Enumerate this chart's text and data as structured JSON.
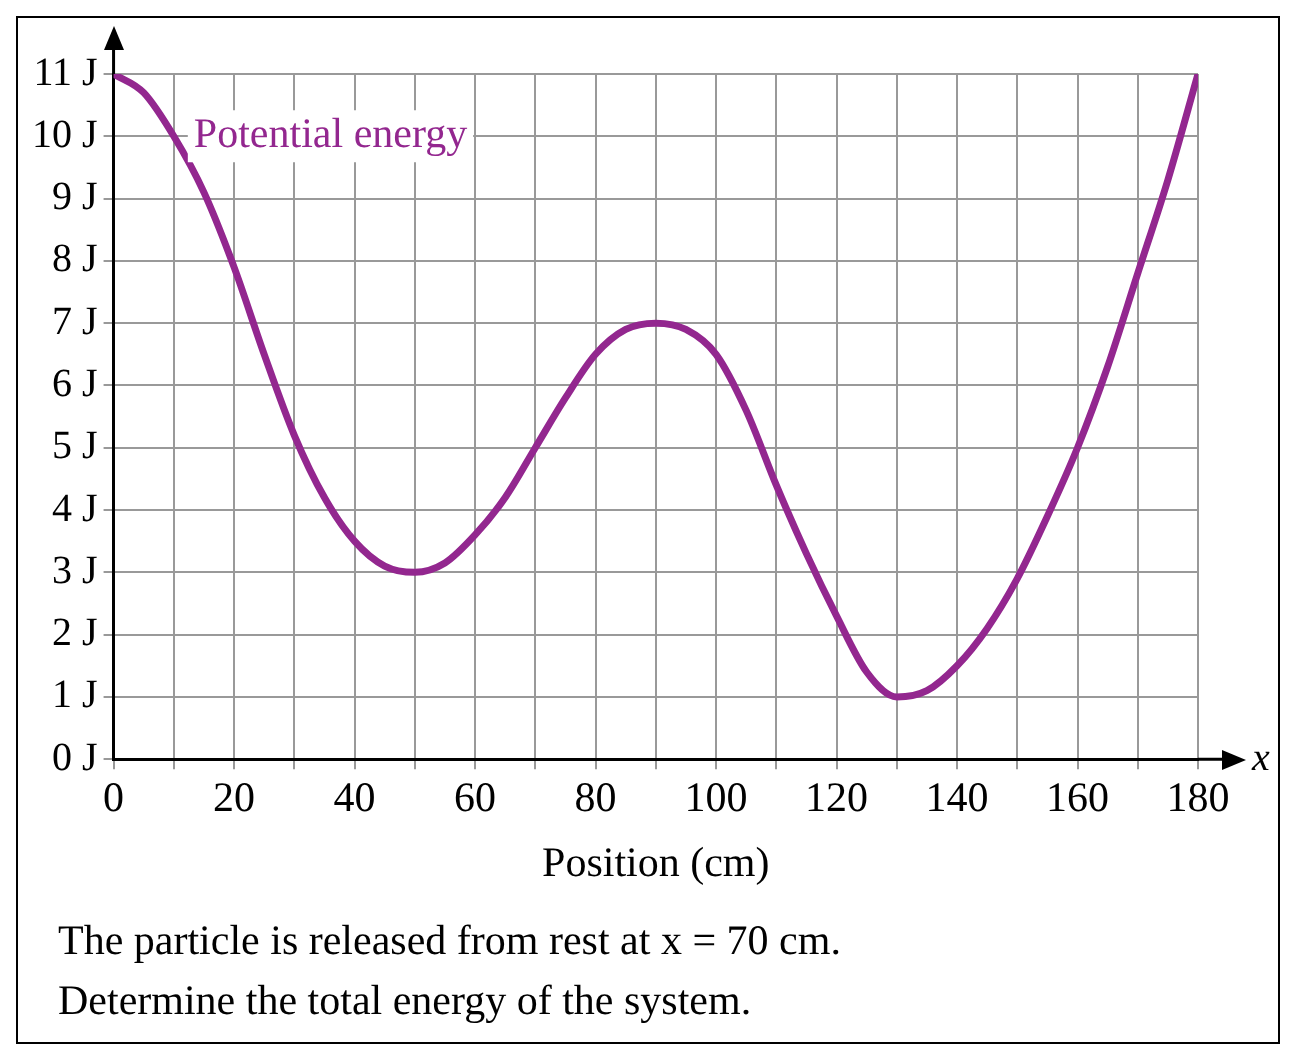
{
  "chart_data": {
    "type": "line",
    "xlabel": "Position (cm)",
    "x": [
      0,
      5,
      10,
      15,
      20,
      25,
      30,
      35,
      40,
      45,
      50,
      55,
      60,
      65,
      70,
      75,
      80,
      85,
      90,
      95,
      100,
      105,
      110,
      115,
      120,
      125,
      130,
      135,
      140,
      145,
      150,
      155,
      160,
      165,
      170,
      175,
      180
    ],
    "series": [
      {
        "name": "Potential energy",
        "color": "#93278f",
        "values": [
          11,
          10.7,
          10,
          9.1,
          7.9,
          6.5,
          5.2,
          4.2,
          3.5,
          3.1,
          3,
          3.15,
          3.6,
          4.2,
          5,
          5.8,
          6.5,
          6.9,
          7,
          6.9,
          6.5,
          5.6,
          4.4,
          3.3,
          2.3,
          1.4,
          1,
          1.1,
          1.5,
          2.1,
          2.9,
          3.9,
          5,
          6.3,
          7.8,
          9.3,
          11
        ]
      }
    ],
    "xlim": [
      0,
      180
    ],
    "ylim": [
      0,
      11
    ],
    "xticks": [
      0,
      {
        "value": 10,
        "label": null
      },
      20,
      {
        "value": 30,
        "label": null
      },
      40,
      {
        "value": 50,
        "label": null
      },
      60,
      {
        "value": 70,
        "label": null
      },
      80,
      {
        "value": 90,
        "label": null
      },
      100,
      {
        "value": 110,
        "label": null
      },
      120,
      {
        "value": 130,
        "label": null
      },
      140,
      {
        "value": 150,
        "label": null
      },
      160,
      {
        "value": 170,
        "label": null
      },
      180
    ],
    "yticks": [
      {
        "value": 0,
        "label": "0 J"
      },
      {
        "value": 1,
        "label": "1 J"
      },
      {
        "value": 2,
        "label": "2 J"
      },
      {
        "value": 3,
        "label": "3 J"
      },
      {
        "value": 4,
        "label": "4 J"
      },
      {
        "value": 5,
        "label": "5 J"
      },
      {
        "value": 6,
        "label": "6 J"
      },
      {
        "value": 7,
        "label": "7 J"
      },
      {
        "value": 8,
        "label": "8 J"
      },
      {
        "value": 9,
        "label": "9 J"
      },
      {
        "value": 10,
        "label": "10 J"
      },
      {
        "value": 11,
        "label": "11 J"
      }
    ],
    "grid": true,
    "legend": false,
    "marker": "none",
    "line_style": "solid",
    "annotations": [
      "x",
      "The particle is released from rest at x = 70 cm.",
      "Determine the total energy of the system."
    ]
  }
}
